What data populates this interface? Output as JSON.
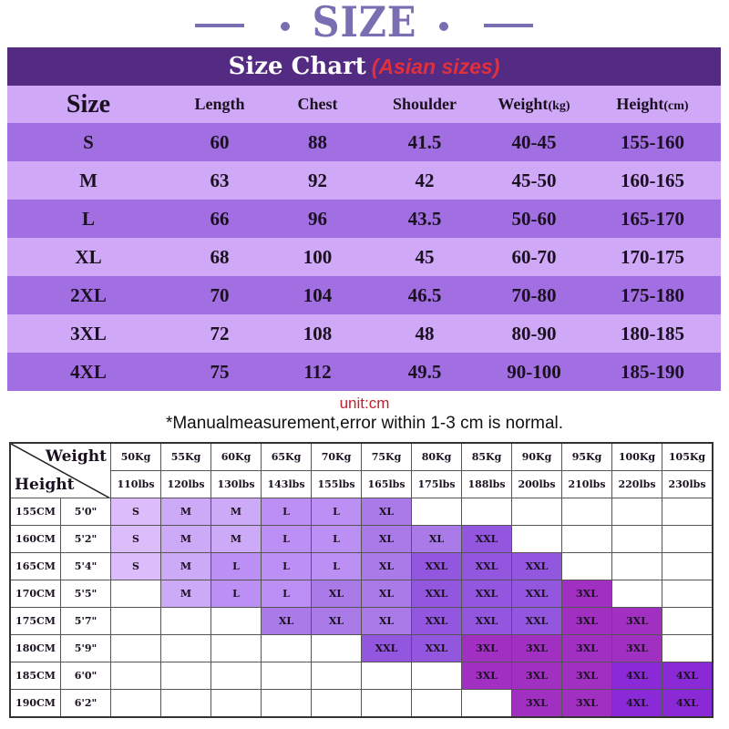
{
  "header": {
    "title": "SIZE",
    "band_title": "Size Chart",
    "band_subtitle": "(Asian sizes)"
  },
  "size_table": {
    "columns": [
      "Size",
      "Length",
      "Chest",
      "Shoulder",
      "Weight",
      "Height"
    ],
    "column_units": [
      "",
      "",
      "",
      "",
      "(kg)",
      "(cm)"
    ],
    "rows": [
      [
        "S",
        "60",
        "88",
        "41.5",
        "40-45",
        "155-160"
      ],
      [
        "M",
        "63",
        "92",
        "42",
        "45-50",
        "160-165"
      ],
      [
        "L",
        "66",
        "96",
        "43.5",
        "50-60",
        "165-170"
      ],
      [
        "XL",
        "68",
        "100",
        "45",
        "60-70",
        "170-175"
      ],
      [
        "2XL",
        "70",
        "104",
        "46.5",
        "70-80",
        "175-180"
      ],
      [
        "3XL",
        "72",
        "108",
        "48",
        "80-90",
        "180-185"
      ],
      [
        "4XL",
        "75",
        "112",
        "49.5",
        "90-100",
        "185-190"
      ]
    ]
  },
  "notes": {
    "unit": "unit:cm",
    "disclaimer": "*Manualmeasurement,error within 1-3 cm is normal."
  },
  "grid": {
    "corner_weight": "Weight",
    "corner_height": "Height",
    "weights_kg": [
      "50Kg",
      "55Kg",
      "60Kg",
      "65Kg",
      "70Kg",
      "75Kg",
      "80Kg",
      "85Kg",
      "90Kg",
      "95Kg",
      "100Kg",
      "105Kg"
    ],
    "weights_lbs": [
      "110lbs",
      "120lbs",
      "130lbs",
      "143lbs",
      "155lbs",
      "165lbs",
      "175lbs",
      "188lbs",
      "200lbs",
      "210lbs",
      "220lbs",
      "230lbs"
    ],
    "rows": [
      {
        "cm": "155CM",
        "ft": "5'0\"",
        "cells": [
          "S",
          "M",
          "M",
          "L",
          "L",
          "XL",
          "",
          "",
          "",
          "",
          "",
          ""
        ]
      },
      {
        "cm": "160CM",
        "ft": "5'2\"",
        "cells": [
          "S",
          "M",
          "M",
          "L",
          "L",
          "XL",
          "XL",
          "XXL",
          "",
          "",
          "",
          ""
        ]
      },
      {
        "cm": "165CM",
        "ft": "5'4\"",
        "cells": [
          "S",
          "M",
          "L",
          "L",
          "L",
          "XL",
          "XXL",
          "XXL",
          "XXL",
          "",
          "",
          ""
        ]
      },
      {
        "cm": "170CM",
        "ft": "5'5\"",
        "cells": [
          "",
          "M",
          "L",
          "L",
          "XL",
          "XL",
          "XXL",
          "XXL",
          "XXL",
          "3XL",
          "",
          ""
        ]
      },
      {
        "cm": "175CM",
        "ft": "5'7\"",
        "cells": [
          "",
          "",
          "",
          "XL",
          "XL",
          "XL",
          "XXL",
          "XXL",
          "XXL",
          "3XL",
          "3XL",
          ""
        ]
      },
      {
        "cm": "180CM",
        "ft": "5'9\"",
        "cells": [
          "",
          "",
          "",
          "",
          "",
          "XXL",
          "XXL",
          "3XL",
          "3XL",
          "3XL",
          "3XL",
          ""
        ]
      },
      {
        "cm": "185CM",
        "ft": "6'0\"",
        "cells": [
          "",
          "",
          "",
          "",
          "",
          "",
          "",
          "3XL",
          "3XL",
          "3XL",
          "4XL",
          "4XL"
        ]
      },
      {
        "cm": "190CM",
        "ft": "6'2\"",
        "cells": [
          "",
          "",
          "",
          "",
          "",
          "",
          "",
          "",
          "3XL",
          "3XL",
          "4XL",
          "4XL"
        ]
      }
    ]
  },
  "colors": {
    "title": "#7b6db2",
    "band": "#532b83",
    "subtitle_red": "#e0303c",
    "row_light": "#cfa9f8",
    "row_dark": "#a26fe2",
    "S": "#dcbcfb",
    "M": "#ccaaf8",
    "L": "#bb8ff3",
    "XL": "#a97ae8",
    "XXL": "#9256df",
    "3XL": "#a12fc1",
    "4XL": "#8a2ad6"
  }
}
